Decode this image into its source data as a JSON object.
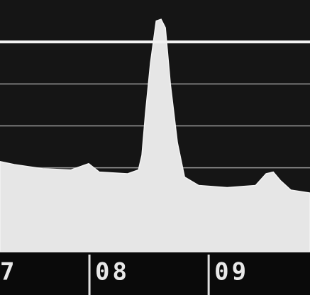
{
  "chart_data": {
    "type": "area",
    "x": [
      7.25,
      7.369,
      7.607,
      7.845,
      7.994,
      8.083,
      8.321,
      8.411,
      8.44,
      8.47,
      8.512,
      8.56,
      8.601,
      8.637,
      8.679,
      8.738,
      8.798,
      8.917,
      9.155,
      9.393,
      9.482,
      9.542,
      9.601,
      9.69,
      9.85
    ],
    "values": [
      2.15,
      2.08,
      1.98,
      1.95,
      2.1,
      1.9,
      1.86,
      1.95,
      2.3,
      3.3,
      4.5,
      5.5,
      5.54,
      5.34,
      4.0,
      2.6,
      1.78,
      1.58,
      1.53,
      1.58,
      1.86,
      1.9,
      1.7,
      1.47,
      1.4
    ],
    "color": "#e6e6e6",
    "xlim": [
      7.25,
      9.85
    ],
    "xticks": [
      7,
      {
        "value": 8,
        "label": "08"
      },
      {
        "value": 9,
        "label": "09"
      }
    ],
    "ylim": [
      0,
      6
    ],
    "yticks": [
      2,
      3,
      4,
      5
    ],
    "grid": true
  }
}
